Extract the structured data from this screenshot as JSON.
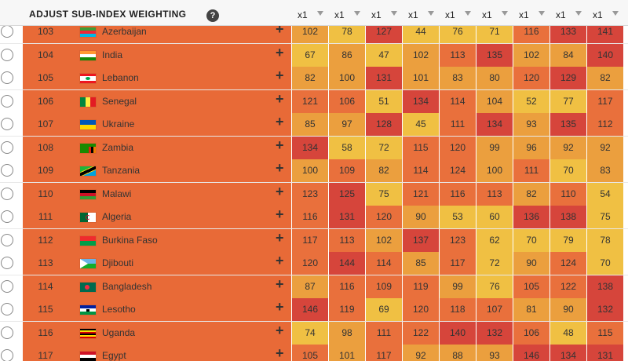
{
  "header": {
    "title": "Adjust sub-index weighting",
    "help_symbol": "?",
    "multipliers": [
      "x1",
      "x1",
      "x1",
      "x1",
      "x1",
      "x1",
      "x1",
      "x1",
      "x1"
    ]
  },
  "colors": {
    "country_band": "#e86a37",
    "scale": [
      "#f0c043",
      "#eb9f3e",
      "#e9703c",
      "#d6453b"
    ]
  },
  "rows": [
    {
      "rank": "103",
      "country": "Azerbaijan",
      "flag": "azerbaijan-flag",
      "values": [
        102,
        78,
        127,
        44,
        76,
        71,
        116,
        133,
        141
      ]
    },
    {
      "rank": "104",
      "country": "India",
      "flag": "india-flag",
      "values": [
        67,
        86,
        47,
        102,
        113,
        135,
        102,
        84,
        140
      ]
    },
    {
      "rank": "105",
      "country": "Lebanon",
      "flag": "lebanon-flag",
      "values": [
        82,
        100,
        131,
        101,
        83,
        80,
        120,
        129,
        82
      ]
    },
    {
      "rank": "106",
      "country": "Senegal",
      "flag": "senegal-flag",
      "values": [
        121,
        106,
        51,
        134,
        114,
        104,
        52,
        77,
        117
      ]
    },
    {
      "rank": "107",
      "country": "Ukraine",
      "flag": "ukraine-flag",
      "values": [
        85,
        97,
        128,
        45,
        111,
        134,
        93,
        135,
        112
      ]
    },
    {
      "rank": "108",
      "country": "Zambia",
      "flag": "zambia-flag",
      "values": [
        134,
        58,
        72,
        115,
        120,
        99,
        96,
        92,
        92
      ]
    },
    {
      "rank": "109",
      "country": "Tanzania",
      "flag": "tanzania-flag",
      "values": [
        100,
        109,
        82,
        114,
        124,
        100,
        111,
        70,
        83
      ]
    },
    {
      "rank": "110",
      "country": "Malawi",
      "flag": "malawi-flag",
      "values": [
        123,
        125,
        75,
        121,
        116,
        113,
        82,
        110,
        54
      ]
    },
    {
      "rank": "111",
      "country": "Algeria",
      "flag": "algeria-flag",
      "values": [
        116,
        131,
        120,
        90,
        53,
        60,
        136,
        138,
        75
      ]
    },
    {
      "rank": "112",
      "country": "Burkina Faso",
      "flag": "burkina-faso-flag",
      "values": [
        117,
        113,
        102,
        137,
        123,
        62,
        70,
        79,
        78
      ]
    },
    {
      "rank": "113",
      "country": "Djibouti",
      "flag": "djibouti-flag",
      "values": [
        120,
        144,
        114,
        85,
        117,
        72,
        90,
        124,
        70
      ]
    },
    {
      "rank": "114",
      "country": "Bangladesh",
      "flag": "bangladesh-flag",
      "values": [
        87,
        116,
        109,
        119,
        99,
        76,
        105,
        122,
        138
      ]
    },
    {
      "rank": "115",
      "country": "Lesotho",
      "flag": "lesotho-flag",
      "values": [
        146,
        119,
        69,
        120,
        118,
        107,
        81,
        90,
        132
      ]
    },
    {
      "rank": "116",
      "country": "Uganda",
      "flag": "uganda-flag",
      "values": [
        74,
        98,
        111,
        122,
        140,
        132,
        106,
        48,
        115
      ]
    },
    {
      "rank": "117",
      "country": "Egypt",
      "flag": "egypt-flag",
      "values": [
        105,
        101,
        117,
        92,
        88,
        93,
        146,
        134,
        131
      ]
    }
  ]
}
